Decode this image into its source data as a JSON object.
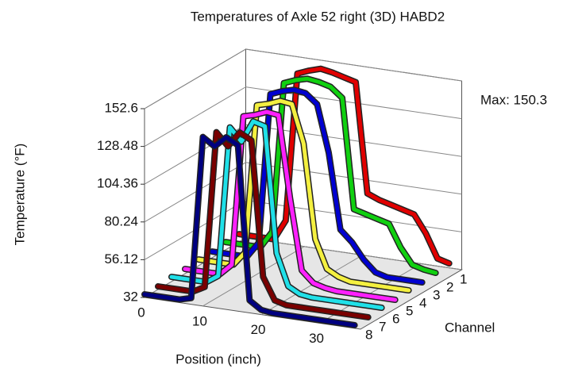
{
  "chart_data": {
    "type": "line3d",
    "title": "Temperatures of Axle 52 right (3D) HABD2",
    "x_label": "Position (inch)",
    "y_label": "Temperature (°F)",
    "z_label": "Channel",
    "annotation": "Max: 150.3",
    "x": [
      0,
      2,
      4,
      6,
      8,
      10,
      12,
      14,
      16,
      18,
      20,
      22,
      24,
      26,
      28,
      30,
      32,
      34,
      36
    ],
    "xlim": [
      0,
      37
    ],
    "xticks": [
      0,
      10,
      20,
      30
    ],
    "ylim": [
      32,
      152.6
    ],
    "yticks": [
      32,
      56.12,
      80.24,
      104.36,
      128.48,
      152.6
    ],
    "grid": true,
    "series": [
      {
        "name": "1",
        "color": "#e00000",
        "values": [
          37,
          37,
          37,
          37,
          50,
          145,
          148,
          150.3,
          149,
          147,
          145,
          75,
          72,
          70,
          68,
          66,
          55,
          40,
          38
        ]
      },
      {
        "name": "2",
        "color": "#10d010",
        "values": [
          37,
          37,
          37,
          37,
          48,
          144,
          147,
          149,
          148,
          146,
          140,
          70,
          68,
          66,
          64,
          50,
          40,
          38,
          37
        ]
      },
      {
        "name": "3",
        "color": "#0000d0",
        "values": [
          36,
          36,
          36,
          36,
          46,
          142,
          145,
          147,
          146,
          140,
          110,
          62,
          55,
          45,
          38,
          36,
          36,
          36,
          36
        ]
      },
      {
        "name": "4",
        "color": "#f4f040",
        "values": [
          36,
          36,
          36,
          36,
          45,
          140,
          142,
          145,
          144,
          120,
          60,
          42,
          38,
          36,
          36,
          36,
          36,
          36,
          36
        ]
      },
      {
        "name": "5",
        "color": "#ff20ff",
        "values": [
          35,
          35,
          35,
          35,
          42,
          138,
          140,
          143,
          142,
          90,
          45,
          38,
          36,
          35,
          35,
          35,
          35,
          35,
          35
        ]
      },
      {
        "name": "6",
        "color": "#20e0e8",
        "values": [
          35,
          35,
          35,
          35,
          40,
          136,
          128,
          142,
          140,
          60,
          40,
          36,
          35,
          35,
          35,
          35,
          35,
          35,
          35
        ]
      },
      {
        "name": "7",
        "color": "#7a0000",
        "values": [
          34,
          34,
          34,
          34,
          38,
          138,
          130,
          140,
          136,
          50,
          36,
          34,
          34,
          34,
          34,
          34,
          34,
          34,
          34
        ]
      },
      {
        "name": "8",
        "color": "#000080",
        "values": [
          34,
          34,
          34,
          34,
          36,
          140,
          135,
          142,
          138,
          40,
          35,
          34,
          34,
          34,
          34,
          34,
          34,
          34,
          34
        ]
      }
    ]
  }
}
